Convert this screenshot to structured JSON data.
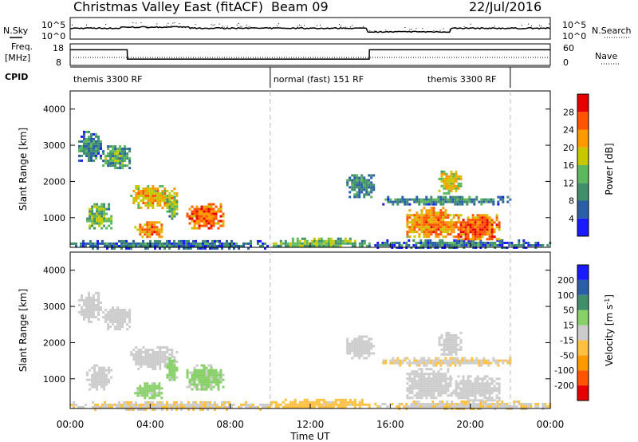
{
  "header": {
    "station": "Christmas Valley East (fitACF)",
    "beam": "Beam 09",
    "date": "22/Jul/2016"
  },
  "panel_labels": {
    "nsky": "N.Sky",
    "nsearch": "N.Search",
    "freq": "Freq.",
    "freq_unit": "[MHz]",
    "nave": "Nave",
    "cpid": "CPID"
  },
  "noise_axis_ticks": [
    "10^5",
    "10^0"
  ],
  "freq_axis_ticks": [
    "18",
    "8"
  ],
  "nave_axis_ticks": [
    "60",
    "0"
  ],
  "cpid_segments": [
    {
      "label": "themis 3300 RF",
      "start_h": 0.0,
      "end_h": 10.0
    },
    {
      "label": "normal (fast) 151 RF",
      "start_h": 10.0,
      "end_h": 22.0
    },
    {
      "label": "themis 3300 RF",
      "start_h": 22.0,
      "end_h": 24.0
    }
  ],
  "x_axis": {
    "title": "Time UT",
    "ticks": [
      "00:00",
      "04:00",
      "08:00",
      "12:00",
      "16:00",
      "20:00",
      "00:00"
    ],
    "range_h": [
      0,
      24
    ]
  },
  "colors": {
    "power": [
      "#1a1aff",
      "#2a5fa8",
      "#3f8f6a",
      "#5cb85c",
      "#c8c800",
      "#ff9900",
      "#ff5500",
      "#e60000"
    ],
    "velocity": [
      "#e60000",
      "#ff5500",
      "#ff9900",
      "#ffc040",
      "#cccccc",
      "#88d068",
      "#3f8f6a",
      "#2a5fa8",
      "#1a1aff"
    ],
    "noise_line": "#000000",
    "divider": "#bbbbbb"
  },
  "chart_data": [
    {
      "type": "line",
      "title": "Noise / Frequency / Nave",
      "series": [
        {
          "name": "Freq.",
          "x_h": [
            0,
            2.85,
            2.86,
            14.95,
            14.96,
            24
          ],
          "values": [
            16,
            16,
            10.7,
            10.7,
            16,
            16
          ]
        }
      ],
      "freq_ylim": [
        8,
        18
      ]
    },
    {
      "type": "heatmap",
      "title": "Power",
      "ylabel": "Slant Range [km]",
      "xlabel": "Time UT",
      "ylim": [
        180,
        4500
      ],
      "yticks": [
        1000,
        2000,
        3000,
        4000
      ],
      "colorbar": {
        "label": "Power [dB]",
        "ticks": [
          "4",
          "8",
          "12",
          "16",
          "20",
          "24",
          "28"
        ],
        "range": [
          0,
          30
        ]
      },
      "regions": [
        {
          "t": [
            0.4,
            1.5
          ],
          "r": [
            2600,
            3400
          ],
          "v": 10
        },
        {
          "t": [
            0.8,
            2.0
          ],
          "r": [
            700,
            1400
          ],
          "v": 14
        },
        {
          "t": [
            1.6,
            3.0
          ],
          "r": [
            2400,
            3000
          ],
          "v": 12
        },
        {
          "t": [
            3.0,
            5.3
          ],
          "r": [
            1300,
            1900
          ],
          "v": 20
        },
        {
          "t": [
            3.2,
            4.6
          ],
          "r": [
            450,
            900
          ],
          "v": 22
        },
        {
          "t": [
            4.8,
            5.3
          ],
          "r": [
            1000,
            1600
          ],
          "v": 14
        },
        {
          "t": [
            5.8,
            7.6
          ],
          "r": [
            700,
            1400
          ],
          "v": 24
        },
        {
          "t": [
            0.0,
            10.0
          ],
          "r": [
            180,
            380
          ],
          "v": 8
        },
        {
          "t": [
            10.0,
            15.0
          ],
          "r": [
            200,
            450
          ],
          "v": 14
        },
        {
          "t": [
            13.8,
            15.2
          ],
          "r": [
            1600,
            2200
          ],
          "v": 10
        },
        {
          "t": [
            15.2,
            24.0
          ],
          "r": [
            200,
            400
          ],
          "v": 8
        },
        {
          "t": [
            16.8,
            19.0
          ],
          "r": [
            450,
            1300
          ],
          "v": 22
        },
        {
          "t": [
            19.0,
            21.5
          ],
          "r": [
            400,
            1100
          ],
          "v": 24
        },
        {
          "t": [
            18.4,
            19.5
          ],
          "r": [
            1700,
            2300
          ],
          "v": 18
        },
        {
          "t": [
            15.6,
            22.0
          ],
          "r": [
            1400,
            1600
          ],
          "v": 10
        }
      ]
    },
    {
      "type": "heatmap",
      "title": "Velocity",
      "ylabel": "Slant Range [km]",
      "xlabel": "Time UT",
      "ylim": [
        180,
        4500
      ],
      "yticks": [
        1000,
        2000,
        3000,
        4000
      ],
      "colorbar": {
        "label": "Velocity [m s^-1]",
        "ticks": [
          "200",
          "100",
          "50",
          "15",
          "-15",
          "-50",
          "-100",
          "-200"
        ],
        "range": [
          -250,
          250
        ]
      },
      "regions": [
        {
          "t": [
            0.4,
            1.5
          ],
          "r": [
            2600,
            3400
          ],
          "v": 0
        },
        {
          "t": [
            0.8,
            2.0
          ],
          "r": [
            700,
            1400
          ],
          "v": 0
        },
        {
          "t": [
            1.6,
            3.0
          ],
          "r": [
            2400,
            3000
          ],
          "v": 0
        },
        {
          "t": [
            3.0,
            5.3
          ],
          "r": [
            1300,
            1900
          ],
          "v": 5
        },
        {
          "t": [
            3.2,
            4.6
          ],
          "r": [
            450,
            900
          ],
          "v": 40
        },
        {
          "t": [
            4.8,
            5.3
          ],
          "r": [
            1000,
            1600
          ],
          "v": 40
        },
        {
          "t": [
            5.8,
            7.6
          ],
          "r": [
            700,
            1400
          ],
          "v": 40
        },
        {
          "t": [
            0.0,
            10.0
          ],
          "r": [
            180,
            380
          ],
          "v": -20
        },
        {
          "t": [
            10.0,
            15.0
          ],
          "r": [
            200,
            450
          ],
          "v": -40
        },
        {
          "t": [
            13.8,
            15.2
          ],
          "r": [
            1600,
            2200
          ],
          "v": 0
        },
        {
          "t": [
            15.2,
            24.0
          ],
          "r": [
            200,
            400
          ],
          "v": -20
        },
        {
          "t": [
            16.8,
            19.0
          ],
          "r": [
            450,
            1300
          ],
          "v": 0
        },
        {
          "t": [
            19.0,
            21.5
          ],
          "r": [
            400,
            1100
          ],
          "v": 0
        },
        {
          "t": [
            18.4,
            19.5
          ],
          "r": [
            1700,
            2300
          ],
          "v": 0
        },
        {
          "t": [
            15.6,
            22.0
          ],
          "r": [
            1400,
            1600
          ],
          "v": -20
        }
      ]
    }
  ]
}
